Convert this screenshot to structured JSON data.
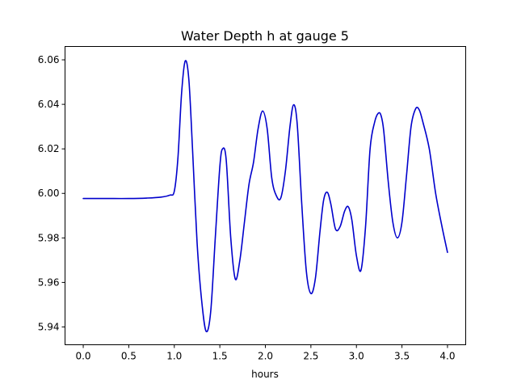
{
  "chart_data": {
    "type": "line",
    "title": "Water Depth h at gauge 5",
    "xlabel": "hours",
    "ylabel": "",
    "xlim": [
      -0.2,
      4.2
    ],
    "ylim": [
      5.932,
      6.066
    ],
    "xticks": [
      0.0,
      0.5,
      1.0,
      1.5,
      2.0,
      2.5,
      3.0,
      3.5,
      4.0
    ],
    "xtick_labels": [
      "0.0",
      "0.5",
      "1.0",
      "1.5",
      "2.0",
      "2.5",
      "3.0",
      "3.5",
      "4.0"
    ],
    "yticks": [
      5.94,
      5.96,
      5.98,
      6.0,
      6.02,
      6.04,
      6.06
    ],
    "ytick_labels": [
      "5.94",
      "5.96",
      "5.98",
      "6.00",
      "6.02",
      "6.04",
      "6.06"
    ],
    "grid": false,
    "series": [
      {
        "name": "",
        "color": "#0000cc",
        "x": [
          0.0,
          0.25,
          0.5,
          0.7,
          0.85,
          0.95,
          1.0,
          1.04,
          1.08,
          1.12,
          1.16,
          1.2,
          1.25,
          1.3,
          1.35,
          1.4,
          1.45,
          1.5,
          1.53,
          1.57,
          1.62,
          1.67,
          1.72,
          1.77,
          1.82,
          1.87,
          1.92,
          1.97,
          2.02,
          2.07,
          2.12,
          2.17,
          2.22,
          2.27,
          2.31,
          2.35,
          2.4,
          2.45,
          2.5,
          2.55,
          2.6,
          2.64,
          2.68,
          2.72,
          2.77,
          2.82,
          2.87,
          2.91,
          2.95,
          3.0,
          3.05,
          3.1,
          3.15,
          3.2,
          3.24,
          3.27,
          3.3,
          3.35,
          3.4,
          3.45,
          3.5,
          3.55,
          3.6,
          3.65,
          3.69,
          3.73,
          3.8,
          3.87,
          3.94,
          4.0
        ],
        "y": [
          5.9977,
          5.9977,
          5.9977,
          5.9979,
          5.9983,
          5.9992,
          6.001,
          6.016,
          6.045,
          6.0595,
          6.051,
          6.02,
          5.978,
          5.952,
          5.938,
          5.947,
          5.98,
          6.012,
          6.02,
          6.015,
          5.98,
          5.9615,
          5.97,
          5.987,
          6.004,
          6.014,
          6.029,
          6.037,
          6.029,
          6.007,
          5.999,
          5.998,
          6.01,
          6.03,
          6.0398,
          6.031,
          5.995,
          5.965,
          5.955,
          5.962,
          5.983,
          5.997,
          6.0005,
          5.995,
          5.984,
          5.985,
          5.992,
          5.994,
          5.988,
          5.972,
          5.9655,
          5.985,
          6.02,
          6.032,
          6.036,
          6.035,
          6.028,
          6.005,
          5.987,
          5.98,
          5.987,
          6.008,
          6.03,
          6.038,
          6.0375,
          6.032,
          6.02,
          6.0,
          5.985,
          5.9735
        ]
      }
    ]
  }
}
